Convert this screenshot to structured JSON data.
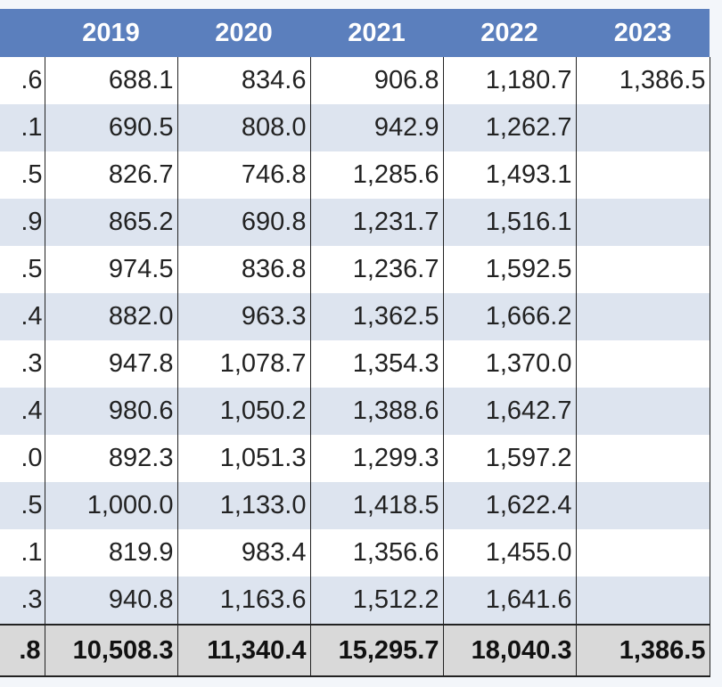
{
  "header": {
    "stub": "",
    "years": [
      "2019",
      "2020",
      "2021",
      "2022",
      "2023"
    ]
  },
  "rows": [
    {
      "stub": ".6",
      "v2019": "688.1",
      "v2020": "834.6",
      "v2021": "906.8",
      "v2022": "1,180.7",
      "v2023": "1,386.5"
    },
    {
      "stub": ".1",
      "v2019": "690.5",
      "v2020": "808.0",
      "v2021": "942.9",
      "v2022": "1,262.7",
      "v2023": ""
    },
    {
      "stub": ".5",
      "v2019": "826.7",
      "v2020": "746.8",
      "v2021": "1,285.6",
      "v2022": "1,493.1",
      "v2023": ""
    },
    {
      "stub": ".9",
      "v2019": "865.2",
      "v2020": "690.8",
      "v2021": "1,231.7",
      "v2022": "1,516.1",
      "v2023": ""
    },
    {
      "stub": ".5",
      "v2019": "974.5",
      "v2020": "836.8",
      "v2021": "1,236.7",
      "v2022": "1,592.5",
      "v2023": ""
    },
    {
      "stub": ".4",
      "v2019": "882.0",
      "v2020": "963.3",
      "v2021": "1,362.5",
      "v2022": "1,666.2",
      "v2023": ""
    },
    {
      "stub": ".3",
      "v2019": "947.8",
      "v2020": "1,078.7",
      "v2021": "1,354.3",
      "v2022": "1,370.0",
      "v2023": ""
    },
    {
      "stub": ".4",
      "v2019": "980.6",
      "v2020": "1,050.2",
      "v2021": "1,388.6",
      "v2022": "1,642.7",
      "v2023": ""
    },
    {
      "stub": ".0",
      "v2019": "892.3",
      "v2020": "1,051.3",
      "v2021": "1,299.3",
      "v2022": "1,597.2",
      "v2023": ""
    },
    {
      "stub": ".5",
      "v2019": "1,000.0",
      "v2020": "1,133.0",
      "v2021": "1,418.5",
      "v2022": "1,622.4",
      "v2023": ""
    },
    {
      "stub": ".1",
      "v2019": "819.9",
      "v2020": "983.4",
      "v2021": "1,356.6",
      "v2022": "1,455.0",
      "v2023": ""
    },
    {
      "stub": ".3",
      "v2019": "940.8",
      "v2020": "1,163.6",
      "v2021": "1,512.2",
      "v2022": "1,641.6",
      "v2023": ""
    }
  ],
  "totals": {
    "stub": ".8",
    "v2019": "10,508.3",
    "v2020": "11,340.4",
    "v2021": "15,295.7",
    "v2022": "18,040.3",
    "v2023": "1,386.5"
  },
  "colors": {
    "header_bg": "#5b7fbd",
    "band_bg": "#dde4ef",
    "total_bg": "#d9d9d9"
  }
}
